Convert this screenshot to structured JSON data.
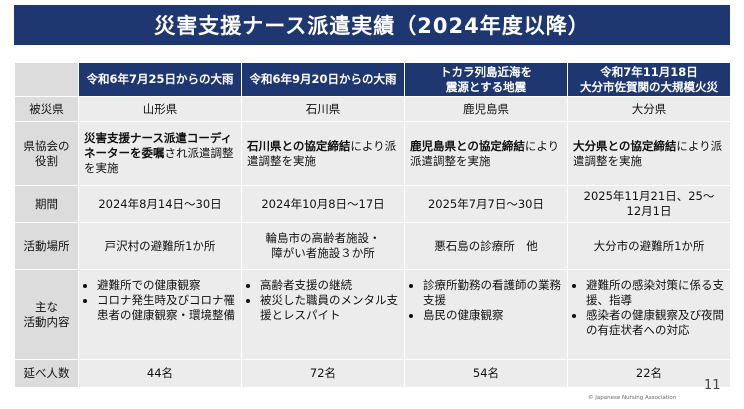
{
  "title": "災害支援ナース派遣実績（2024年度以降）",
  "columns": [
    [
      "令和6年7月25日からの大雨"
    ],
    [
      "令和6年9月20日からの大雨"
    ],
    [
      "トカラ列島近海を",
      "震源とする地震"
    ],
    [
      "令和7年11月18日",
      "大分市佐賀関の大規模火災"
    ]
  ],
  "row_headers": {
    "prefecture": [
      "被災県"
    ],
    "role": [
      "県協会の",
      "役割"
    ],
    "period": [
      "期間"
    ],
    "place": [
      "活動場所"
    ],
    "activities": [
      "主な",
      "活動内容"
    ],
    "total": [
      "延べ人数"
    ]
  },
  "prefecture": [
    "山形県",
    "石川県",
    "鹿児島県",
    "大分県"
  ],
  "role": [
    {
      "bold": "災害支援ナース派遣コーディネーターを委嘱",
      "rest": "され派遣調整を実施"
    },
    {
      "bold": "石川県との協定締結",
      "rest": "により派遣調整を実施"
    },
    {
      "bold": "鹿児島県との協定締結",
      "rest": "により派遣調整を実施"
    },
    {
      "bold": "大分県との協定締結",
      "rest": "により派遣調整を実施"
    }
  ],
  "period": [
    [
      "2024年8月14日～30日"
    ],
    [
      "2024年10月8日～17日"
    ],
    [
      "2025年7月7日～30日"
    ],
    [
      "2025年11月21日、25～",
      "12月1日"
    ]
  ],
  "place": [
    [
      "戸沢村の避難所1か所"
    ],
    [
      "輪島市の高齢者施設・",
      "障がい者施設３か所"
    ],
    [
      "悪石島の診療所　他"
    ],
    [
      "大分市の避難所1か所"
    ]
  ],
  "activities": [
    [
      "避難所での健康観察",
      "コロナ発生時及びコロナ罹患者の健康観察・環境整備"
    ],
    [
      "高齢者支援の継続",
      "被災した職員のメンタル支援とレスパイト"
    ],
    [
      "診療所勤務の看護師の業務支援",
      "島民の健康観察"
    ],
    [
      "避難所の感染対策に係る支援、指導",
      "感染者の健康観察及び夜間の有症状者への対応"
    ]
  ],
  "total": [
    "44名",
    "72名",
    "54名",
    "22名"
  ],
  "page_number": "11",
  "copyright": "© Japanese Nursing Association"
}
